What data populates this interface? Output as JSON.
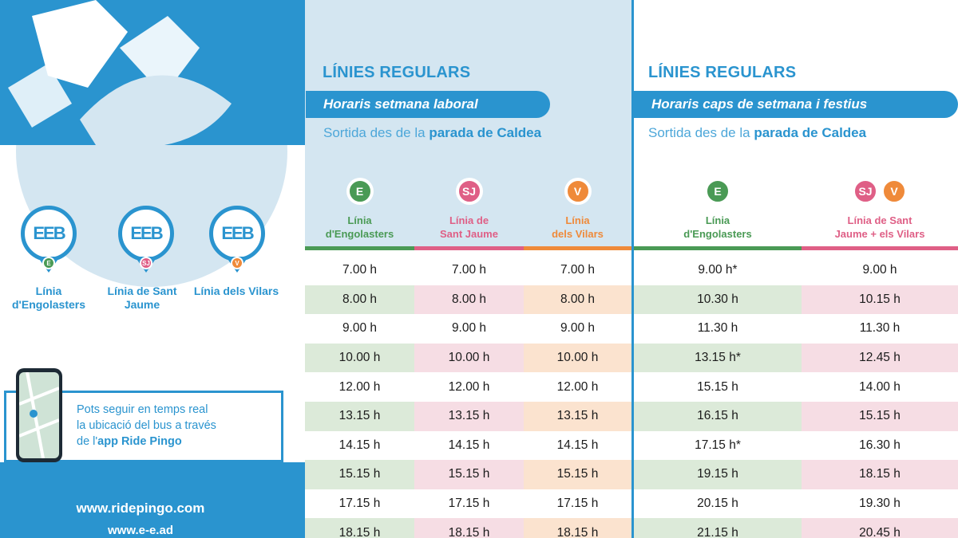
{
  "brand": {
    "blue": "#2a94cf",
    "light_blue": "#d4e6f1",
    "green": "#4a9a55",
    "pink": "#df5f86",
    "orange": "#ef8a3a"
  },
  "left": {
    "lines": [
      {
        "badge": "E",
        "label": "Línia d'Engolasters",
        "color": "#4a9a55"
      },
      {
        "badge": "SJ",
        "label": "Línia de Sant Jaume",
        "color": "#df5f86"
      },
      {
        "badge": "V",
        "label": "Línia dels Vilars",
        "color": "#ef8a3a"
      }
    ],
    "app_text_1": "Pots seguir en temps real",
    "app_text_2": "la ubicació del bus a través",
    "app_text_3": "de l'",
    "app_text_app": "app Ride Pingo",
    "web1": "www.ridepingo.com",
    "web2": "www.e-e.ad"
  },
  "weekday": {
    "heading": "LÍNIES REGULARS",
    "banner": "Horaris setmana laboral",
    "sortida_prefix": "Sortida des de la ",
    "sortida_strong": "parada de Caldea",
    "columns": [
      {
        "badge": "E",
        "name_1": "Línia",
        "name_2": "d'Engolasters",
        "color": "#4a9a55",
        "alt_bg": "#dcead9"
      },
      {
        "badge": "SJ",
        "name_1": "Línia de",
        "name_2": "Sant Jaume",
        "color": "#df5f86",
        "alt_bg": "#f6dde4"
      },
      {
        "badge": "V",
        "name_1": "Línia",
        "name_2": "dels Vilars",
        "color": "#ef8a3a",
        "alt_bg": "#fbe3cf"
      }
    ],
    "rows": [
      [
        "7.00 h",
        "7.00 h",
        "7.00 h"
      ],
      [
        "8.00 h",
        "8.00 h",
        "8.00 h"
      ],
      [
        "9.00 h",
        "9.00 h",
        "9.00 h"
      ],
      [
        "10.00 h",
        "10.00 h",
        "10.00 h"
      ],
      [
        "12.00 h",
        "12.00 h",
        "12.00 h"
      ],
      [
        "13.15 h",
        "13.15 h",
        "13.15 h"
      ],
      [
        "14.15 h",
        "14.15 h",
        "14.15 h"
      ],
      [
        "15.15 h",
        "15.15 h",
        "15.15 h"
      ],
      [
        "17.15 h",
        "17.15 h",
        "17.15 h"
      ],
      [
        "18.15 h",
        "18.15 h",
        "18.15 h"
      ]
    ]
  },
  "weekend": {
    "heading": "LÍNIES REGULARS",
    "banner": "Horaris caps de setmana i festius",
    "sortida_prefix": "Sortida des de la ",
    "sortida_strong": "parada de Caldea",
    "columns": [
      {
        "badges": [
          "E"
        ],
        "name_1": "Línia",
        "name_2": "d'Engolasters",
        "color": "#4a9a55",
        "alt_bg": "#dcead9"
      },
      {
        "badges": [
          "SJ",
          "V"
        ],
        "name_1": "Línia de Sant",
        "name_2": "Jaume + els Vilars",
        "color": "#df5f86",
        "alt_bg": "#f6dde4"
      }
    ],
    "rows": [
      [
        "9.00 h*",
        "9.00 h"
      ],
      [
        "10.30 h",
        "10.15 h"
      ],
      [
        "11.30 h",
        "11.30 h"
      ],
      [
        "13.15 h*",
        "12.45 h"
      ],
      [
        "15.15 h",
        "14.00 h"
      ],
      [
        "16.15 h",
        "15.15 h"
      ],
      [
        "17.15 h*",
        "16.30 h"
      ],
      [
        "19.15 h",
        "18.15 h"
      ],
      [
        "20.15 h",
        "19.30 h"
      ],
      [
        "21.15 h",
        "20.45 h"
      ]
    ]
  }
}
